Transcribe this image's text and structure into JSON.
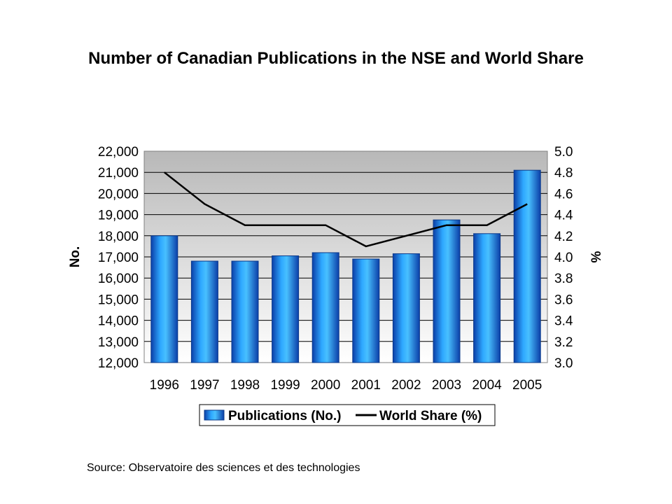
{
  "chart_data": {
    "type": "bar+line",
    "title": "Number of Canadian Publications in the NSE and World Share",
    "source": "Source: Observatoire des sciences et des technologies",
    "categories": [
      "1996",
      "1997",
      "1998",
      "1999",
      "2000",
      "2001",
      "2002",
      "2003",
      "2004",
      "2005"
    ],
    "series": [
      {
        "name": "Publications (No.)",
        "type": "bar",
        "axis": "left",
        "color": "#1e90ff",
        "values": [
          18000,
          16800,
          16800,
          17050,
          17200,
          16900,
          17150,
          18750,
          18100,
          21100
        ]
      },
      {
        "name": "World Share (%)",
        "type": "line",
        "axis": "right",
        "color": "#000000",
        "values": [
          4.8,
          4.5,
          4.3,
          4.3,
          4.3,
          4.1,
          4.2,
          4.3,
          4.3,
          4.5
        ]
      }
    ],
    "ylabel": "No.",
    "y2label": "%",
    "ylim": [
      12000,
      22000
    ],
    "y2lim": [
      3.0,
      5.0
    ],
    "yticks": [
      "12,000",
      "13,000",
      "14,000",
      "15,000",
      "16,000",
      "17,000",
      "18,000",
      "19,000",
      "20,000",
      "21,000",
      "22,000"
    ],
    "y2ticks": [
      "3.0",
      "3.2",
      "3.4",
      "3.6",
      "3.8",
      "4.0",
      "4.2",
      "4.4",
      "4.6",
      "4.8",
      "5.0"
    ],
    "grid": true,
    "legend_position": "bottom"
  }
}
